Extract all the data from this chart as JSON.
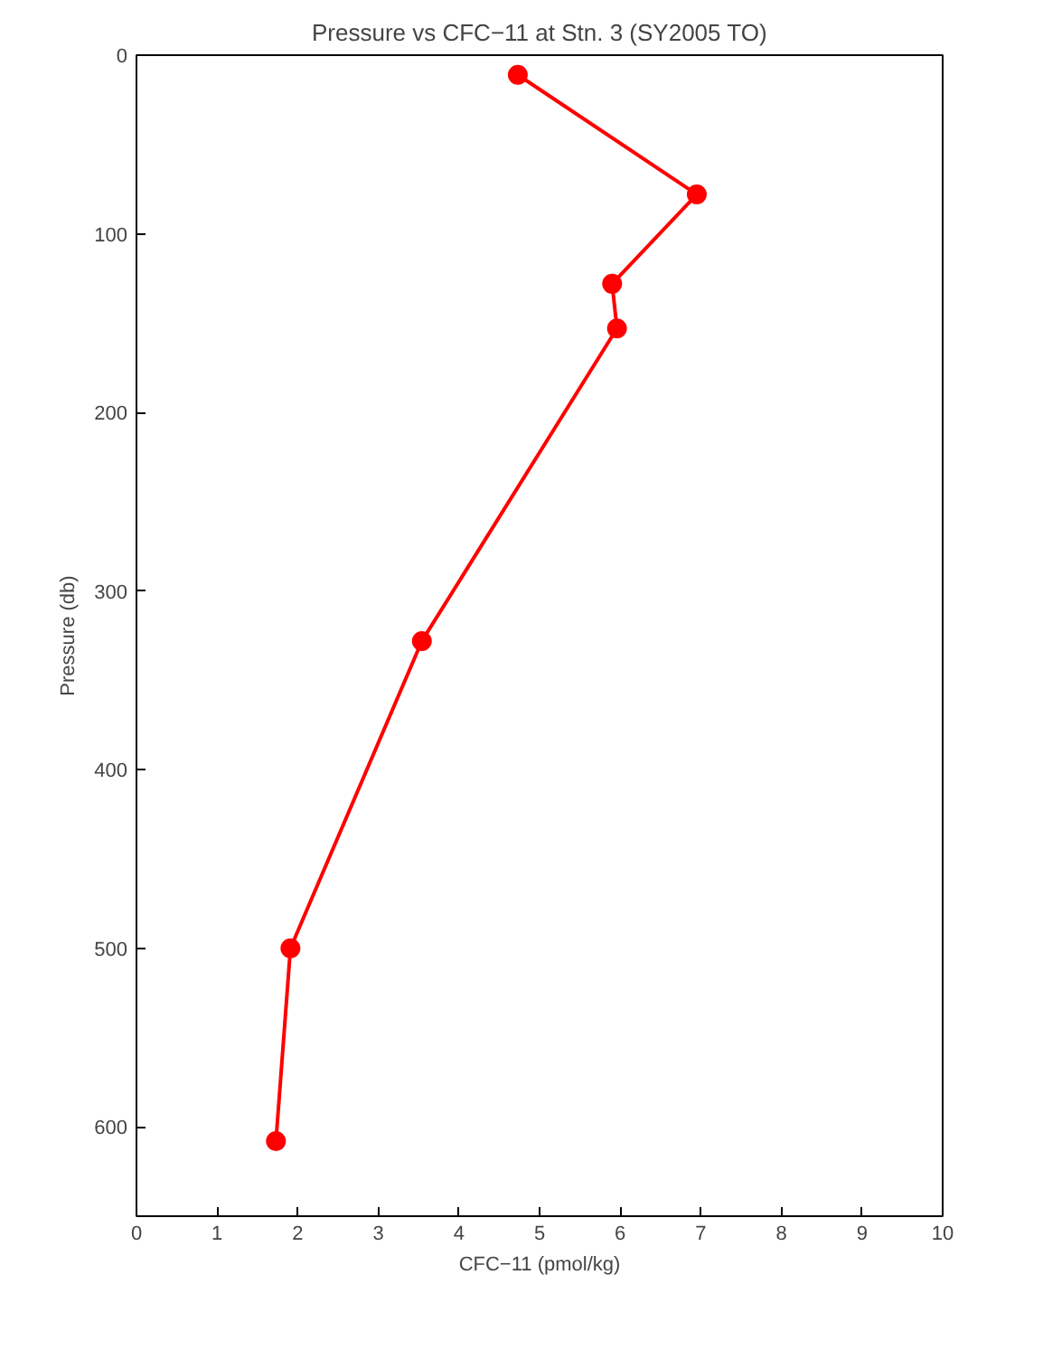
{
  "chart_data": {
    "type": "line",
    "title": "Pressure vs CFC−11 at Stn. 3 (SY2005 TO)",
    "xlabel": "CFC−11 (pmol/kg)",
    "ylabel": "Pressure (db)",
    "x": [
      4.73,
      6.95,
      5.9,
      5.96,
      3.54,
      1.91,
      1.73
    ],
    "series": [
      {
        "color": "#ff0000",
        "values": [
          11,
          78,
          128,
          153,
          328,
          500,
          608
        ]
      }
    ],
    "xlim": [
      0,
      10
    ],
    "ylim": [
      650,
      0
    ],
    "xticks": [
      0,
      1,
      2,
      3,
      4,
      5,
      6,
      7,
      8,
      9,
      10
    ],
    "yticks": [
      0,
      100,
      200,
      300,
      400,
      500,
      600
    ],
    "grid": false,
    "marker": "circle",
    "line_style": "solid"
  }
}
